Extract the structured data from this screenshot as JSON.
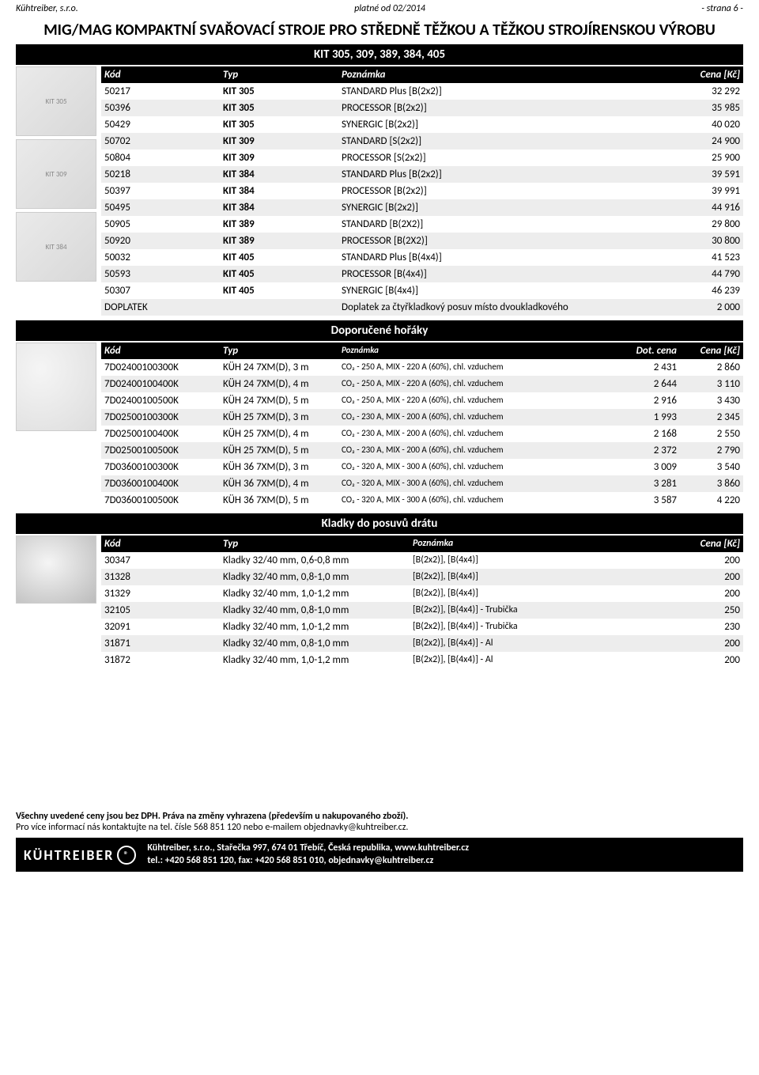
{
  "header": {
    "company": "Kühtreiber, s.r.o.",
    "valid": "platné od 02/2014",
    "page": "- strana 6 -",
    "main_title": "MIG/MAG KOMPAKTNÍ SVAŘOVACÍ STROJE PRO STŘEDNĚ TĚŽKOU A TĚŽKOU STROJÍRENSKOU VÝROBU",
    "section1": "KIT 305, 309, 389, 384, 405",
    "section2": "Doporučené hořáky",
    "section3": "Kladky do posuvů drátu",
    "col_kod": "Kód",
    "col_typ": "Typ",
    "col_poznamka": "Poznámka",
    "col_cena": "Cena [Kč]",
    "col_dot": "Dot. cena"
  },
  "colors": {
    "black": "#000000",
    "white": "#ffffff",
    "stripe": "#ededed"
  },
  "table1": [
    {
      "code": "50217",
      "typ": "KIT 305",
      "note": "STANDARD  Plus [B(2x2)]",
      "price": "32 292"
    },
    {
      "code": "50396",
      "typ": "KIT 305",
      "note": "PROCESSOR [B(2x2)]",
      "price": "35 985"
    },
    {
      "code": "50429",
      "typ": "KIT 305",
      "note": "SYNERGIC  [B(2x2)]",
      "price": "40 020"
    },
    {
      "code": "50702",
      "typ": "KIT 309",
      "note": "STANDARD [S(2x2)]",
      "price": "24 900"
    },
    {
      "code": "50804",
      "typ": "KIT 309",
      "note": "PROCESSOR [S(2x2)]",
      "price": "25 900"
    },
    {
      "code": "50218",
      "typ": "KIT 384",
      "note": "STANDARD Plus [B(2x2)]",
      "price": "39 591"
    },
    {
      "code": "50397",
      "typ": "KIT 384",
      "note": "PROCESSOR [B(2x2)]",
      "price": "39 991"
    },
    {
      "code": "50495",
      "typ": "KIT 384",
      "note": "SYNERGIC  [B(2x2)]",
      "price": "44 916"
    },
    {
      "code": "50905",
      "typ": "KIT 389",
      "note": "STANDARD [B(2X2)]",
      "price": "29 800"
    },
    {
      "code": "50920",
      "typ": "KIT 389",
      "note": "PROCESSOR [B(2X2)]",
      "price": "30 800"
    },
    {
      "code": "50032",
      "typ": "KIT 405",
      "note": "STANDARD Plus [B(4x4)]",
      "price": "41 523"
    },
    {
      "code": "50593",
      "typ": "KIT 405",
      "note": "PROCESSOR [B(4x4)]",
      "price": "44 790"
    },
    {
      "code": "50307",
      "typ": "KIT 405",
      "note": "SYNERGIC  [B(4x4)]",
      "price": "46 239"
    },
    {
      "code": "DOPLATEK",
      "typ": "",
      "note": "Doplatek za čtyřkladkový posuv místo dvoukladkového",
      "price": "2 000"
    }
  ],
  "table2": [
    {
      "code": "7D02400100300K",
      "typ": "KÜH 24 7XM(D), 3 m",
      "note": "CO₂ - 250 A, MIX - 220 A (60%), chl. vzduchem",
      "dot": "2 431",
      "price": "2 860"
    },
    {
      "code": "7D02400100400K",
      "typ": "KÜH 24 7XM(D), 4 m",
      "note": "CO₂ - 250 A, MIX - 220 A (60%), chl. vzduchem",
      "dot": "2 644",
      "price": "3 110"
    },
    {
      "code": "7D02400100500K",
      "typ": "KÜH 24 7XM(D), 5 m",
      "note": "CO₂ - 250 A, MIX - 220 A (60%), chl. vzduchem",
      "dot": "2 916",
      "price": "3 430"
    },
    {
      "code": "7D02500100300K",
      "typ": "KÜH 25 7XM(D), 3 m",
      "note": "CO₂ - 230 A, MIX - 200 A (60%), chl. vzduchem",
      "dot": "1 993",
      "price": "2 345"
    },
    {
      "code": "7D02500100400K",
      "typ": "KÜH 25 7XM(D), 4 m",
      "note": "CO₂ - 230 A, MIX - 200 A (60%), chl. vzduchem",
      "dot": "2 168",
      "price": "2 550"
    },
    {
      "code": "7D02500100500K",
      "typ": "KÜH 25 7XM(D), 5 m",
      "note": "CO₂ - 230 A, MIX - 200 A (60%), chl. vzduchem",
      "dot": "2 372",
      "price": "2 790"
    },
    {
      "code": "7D03600100300K",
      "typ": "KÜH 36 7XM(D), 3 m",
      "note": "CO₂ - 320 A, MIX - 300 A (60%), chl. vzduchem",
      "dot": "3 009",
      "price": "3 540"
    },
    {
      "code": "7D03600100400K",
      "typ": "KÜH 36 7XM(D), 4 m",
      "note": "CO₂ - 320 A, MIX - 300 A (60%), chl. vzduchem",
      "dot": "3 281",
      "price": "3 860"
    },
    {
      "code": "7D03600100500K",
      "typ": "KÜH 36 7XM(D), 5 m",
      "note": "CO₂ - 320 A, MIX - 300 A (60%), chl. vzduchem",
      "dot": "3 587",
      "price": "4 220"
    }
  ],
  "table3": [
    {
      "code": "30347",
      "typ": "Kladky 32/40 mm, 0,6-0,8 mm",
      "note": "[B(2x2)], [B(4x4)]",
      "price": "200"
    },
    {
      "code": "31328",
      "typ": "Kladky 32/40 mm, 0,8-1,0 mm",
      "note": "[B(2x2)], [B(4x4)]",
      "price": "200"
    },
    {
      "code": "31329",
      "typ": "Kladky 32/40 mm, 1,0-1,2 mm",
      "note": "[B(2x2)], [B(4x4)]",
      "price": "200"
    },
    {
      "code": "32105",
      "typ": "Kladky 32/40 mm, 0,8-1,0 mm",
      "note": "[B(2x2)], [B(4x4)] - Trubička",
      "price": "250"
    },
    {
      "code": "32091",
      "typ": "Kladky 32/40 mm, 1,0-1,2 mm",
      "note": "[B(2x2)], [B(4x4)] - Trubička",
      "price": "230"
    },
    {
      "code": "31871",
      "typ": "Kladky 32/40 mm, 0,8-1,0 mm",
      "note": "[B(2x2)], [B(4x4)] - Al",
      "price": "200"
    },
    {
      "code": "31872",
      "typ": "Kladky 32/40 mm, 1,0-1,2 mm",
      "note": "[B(2x2)], [B(4x4)] - Al",
      "price": "200"
    }
  ],
  "footer": {
    "line1a": "Všechny uvedené ceny jsou bez DPH. ",
    "line1b": "Práva na změny vyhrazena (především u nakupovaného zboží).",
    "line2": "Pro více informací nás kontaktujte na tel. čísle 568 851 120 nebo e-mailem objednavky@kuhtreiber.cz.",
    "logo": "KÜHTREIBER",
    "addr1": "Kühtreiber, s.r.o., Stařečka 997, 674 01 Třebíč, Česká republika, www.kuhtreiber.cz",
    "addr2": "tel.: +420 568 851 120, fax: +420 568 851 010, objednavky@kuhtreiber.cz"
  }
}
